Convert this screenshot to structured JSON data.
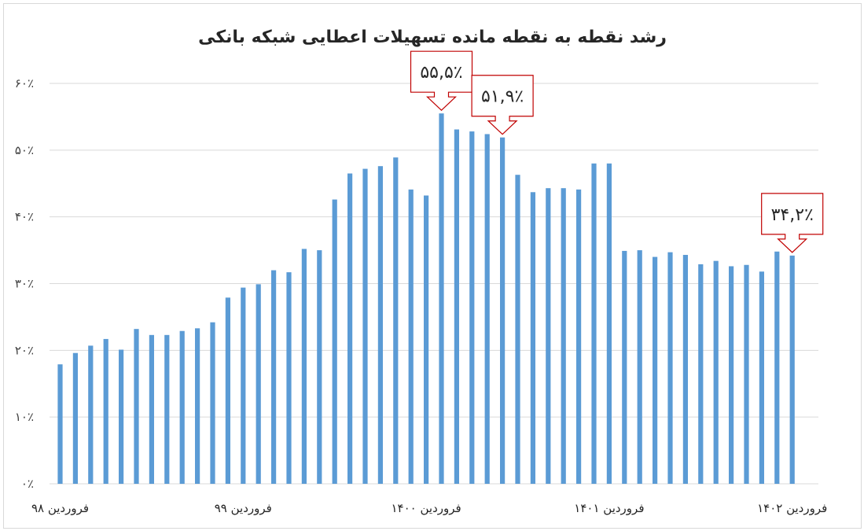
{
  "chart_data": {
    "type": "bar",
    "title": "رشد نقطه به نقطه مانده تسهیلات اعطایی شبکه بانکی",
    "xlabel": "",
    "ylabel": "",
    "ylim": [
      0,
      60
    ],
    "yticks": [
      0,
      10,
      20,
      30,
      40,
      50,
      60
    ],
    "ytick_labels": [
      "۰٪",
      "۱۰٪",
      "۲۰٪",
      "۳۰٪",
      "۴۰٪",
      "۵۰٪",
      "۶۰٪"
    ],
    "grid": true,
    "legend": "none",
    "bar_color": "#5B9BD5",
    "x_tick_labels": [
      {
        "index": 0,
        "label": "فروردین ۹۸"
      },
      {
        "index": 12,
        "label": "فروردین ۹۹"
      },
      {
        "index": 24,
        "label": "فروردین ۱۴۰۰"
      },
      {
        "index": 36,
        "label": "فروردین ۱۴۰۱"
      },
      {
        "index": 48,
        "label": "فروردین ۱۴۰۲"
      }
    ],
    "values": [
      17.9,
      19.6,
      20.7,
      21.7,
      20.1,
      23.2,
      22.3,
      22.3,
      22.9,
      23.3,
      24.2,
      27.9,
      29.4,
      29.9,
      32.0,
      31.7,
      35.2,
      35.0,
      42.6,
      46.5,
      47.2,
      47.6,
      48.9,
      44.1,
      43.2,
      55.5,
      53.1,
      52.8,
      52.4,
      51.9,
      46.3,
      43.7,
      44.3,
      44.3,
      44.1,
      48.0,
      48.0,
      34.9,
      35.0,
      34.0,
      34.7,
      34.3,
      32.9,
      33.4,
      32.6,
      32.8,
      31.8,
      34.8,
      34.2
    ],
    "annotations": [
      {
        "index": 25,
        "label": "۵۵,۵٪"
      },
      {
        "index": 29,
        "label": "۵۱,۹٪"
      },
      {
        "index": 48,
        "label": "۳۴,۲٪"
      }
    ],
    "annotation_border": "#C00000"
  }
}
